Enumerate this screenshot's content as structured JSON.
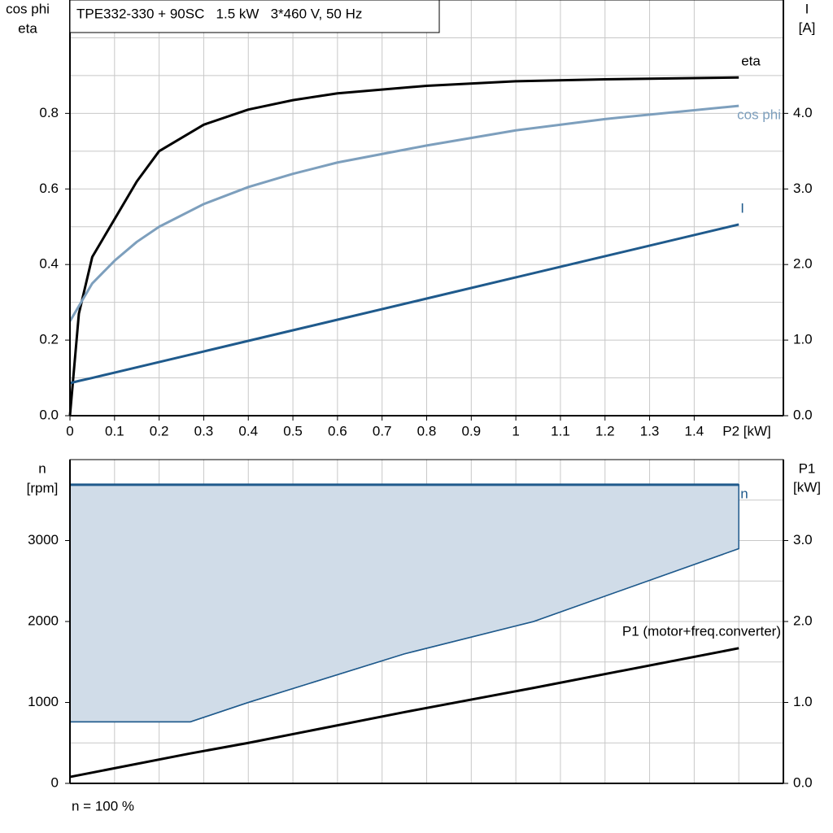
{
  "chart_data": [
    {
      "type": "line",
      "title": "TPE332-330 + 90SC   1.5 kW   3*460 V, 50 Hz",
      "ylabel": [
        "cos phi",
        "eta"
      ],
      "y2label": [
        "I",
        "[A]"
      ],
      "xlabel": "P2 [kW]",
      "x": [
        0,
        0.02,
        0.05,
        0.1,
        0.15,
        0.2,
        0.3,
        0.4,
        0.5,
        0.6,
        0.8,
        1.0,
        1.2,
        1.5
      ],
      "xlim": [
        0,
        1.6
      ],
      "xticks": [
        0,
        0.1,
        0.2,
        0.3,
        0.4,
        0.5,
        0.6,
        0.7,
        0.8,
        0.9,
        1.0,
        1.1,
        1.2,
        1.3,
        1.4
      ],
      "ylim": [
        0,
        1.1
      ],
      "yticks": [
        {
          "value": 0,
          "label": "0.0"
        },
        0.2,
        0.4,
        0.6,
        0.8
      ],
      "ygrid": [
        0.1,
        0.2,
        0.3,
        0.4,
        0.5,
        0.6,
        0.7,
        0.8,
        0.9,
        1.0
      ],
      "y2lim": [
        0,
        5.5
      ],
      "y2ticks": [
        {
          "value": 0,
          "label": "0.0"
        },
        {
          "value": 1,
          "label": "1.0"
        },
        {
          "value": 2,
          "label": "2.0"
        },
        {
          "value": 3,
          "label": "3.0"
        },
        {
          "value": 4,
          "label": "4.0"
        }
      ],
      "grid": true,
      "series": [
        {
          "name": "eta",
          "color": "#000000",
          "values": [
            0,
            0.27,
            0.42,
            0.52,
            0.62,
            0.7,
            0.77,
            0.81,
            0.835,
            0.853,
            0.873,
            0.885,
            0.89,
            0.895
          ]
        },
        {
          "name": "cos phi",
          "color": "#7d9fbd",
          "values": [
            0.25,
            0.29,
            0.35,
            0.41,
            0.46,
            0.5,
            0.56,
            0.605,
            0.64,
            0.67,
            0.715,
            0.755,
            0.785,
            0.82
          ]
        },
        {
          "name": "I",
          "color": "#1f5a8c",
          "axis": "y2",
          "values": [
            0.43,
            0.46,
            0.5,
            0.57,
            0.64,
            0.71,
            0.85,
            0.99,
            1.13,
            1.27,
            1.55,
            1.83,
            2.11,
            2.53
          ]
        }
      ]
    },
    {
      "type": "line",
      "ylabel": [
        "n",
        "[rpm]"
      ],
      "y2label": [
        "P1",
        "[kW]"
      ],
      "note": "n = 100 %",
      "x": [
        0,
        0.27,
        0.4,
        0.75,
        1.04,
        1.5
      ],
      "xlim": [
        0,
        1.6
      ],
      "xgrid": [
        0.1,
        0.2,
        0.3,
        0.4,
        0.5,
        0.6,
        0.7,
        0.8,
        0.9,
        1.0,
        1.1,
        1.2,
        1.3,
        1.4,
        1.5
      ],
      "ylim": [
        0,
        4000
      ],
      "yticks": [
        0,
        1000,
        2000,
        3000
      ],
      "ygrid": [
        500,
        1000,
        1500,
        2000,
        2500,
        3000,
        3500
      ],
      "y2lim": [
        0,
        4
      ],
      "y2ticks": [
        {
          "value": 0,
          "label": "0.0"
        },
        {
          "value": 1,
          "label": "1.0"
        },
        {
          "value": 2,
          "label": "2.0"
        },
        {
          "value": 3,
          "label": "3.0"
        }
      ],
      "grid": true,
      "series": [
        {
          "name": "n",
          "color": "#1f5a8c",
          "fill": "#d0dce8",
          "values": [
            3690,
            3690,
            3690,
            3690,
            3690,
            3690
          ],
          "lower": [
            760,
            760,
            1000,
            1600,
            2000,
            2900
          ]
        },
        {
          "name": "P1 (motor+freq.converter)",
          "color": "#000000",
          "axis": "y2",
          "values": [
            0.08,
            0.37,
            0.5,
            0.88,
            1.18,
            1.67
          ]
        }
      ]
    }
  ]
}
